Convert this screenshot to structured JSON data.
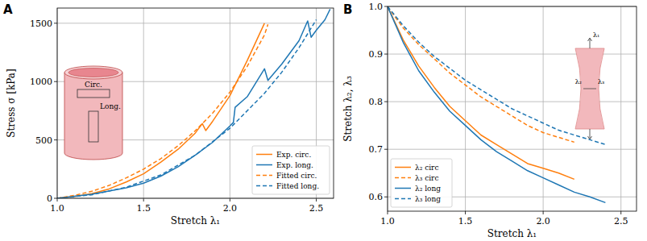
{
  "chart_data": [
    {
      "type": "line",
      "title": "A",
      "x_label": "Stretch λ₁",
      "y_label": "Stress σ [kPa]",
      "xlim": [
        1.0,
        2.6
      ],
      "ylim": [
        0,
        1630
      ],
      "xticks": [
        {
          "value": 1.0,
          "label": "1.0"
        },
        {
          "value": 1.5,
          "label": "1.5"
        },
        {
          "value": 2.0,
          "label": "2.0"
        },
        {
          "value": 2.5,
          "label": "2.5"
        }
      ],
      "yticks": [
        0,
        500,
        1000,
        1500
      ],
      "grid": true,
      "legend": "lower right",
      "annotations": [
        "Circ.",
        "Long."
      ],
      "series": [
        {
          "name": "Exp. circ.",
          "color": "#ff7f0e",
          "line_style": "solid",
          "x": [
            1.0,
            1.1,
            1.2,
            1.3,
            1.4,
            1.5,
            1.6,
            1.7,
            1.8,
            1.84,
            1.86,
            1.9,
            2.0,
            2.1,
            2.2
          ],
          "values": [
            0,
            15,
            40,
            80,
            140,
            210,
            310,
            420,
            560,
            640,
            580,
            660,
            880,
            1180,
            1500
          ]
        },
        {
          "name": "Exp. long.",
          "color": "#1f77b4",
          "line_style": "solid",
          "x": [
            1.0,
            1.2,
            1.4,
            1.5,
            1.6,
            1.7,
            1.8,
            1.9,
            2.0,
            2.02,
            2.03,
            2.1,
            2.2,
            2.22,
            2.3,
            2.4,
            2.45,
            2.47,
            2.5,
            2.55,
            2.58
          ],
          "values": [
            0,
            35,
            90,
            130,
            190,
            270,
            370,
            480,
            620,
            650,
            780,
            870,
            1110,
            1010,
            1150,
            1350,
            1520,
            1380,
            1440,
            1530,
            1620
          ]
        },
        {
          "name": "Fitted circ.",
          "color": "#ff7f0e",
          "line_style": "dashed",
          "x": [
            1.0,
            1.1,
            1.2,
            1.3,
            1.4,
            1.5,
            1.6,
            1.7,
            1.8,
            1.9,
            2.0,
            2.1,
            2.2,
            2.22
          ],
          "values": [
            0,
            25,
            60,
            110,
            175,
            250,
            340,
            450,
            580,
            730,
            910,
            1130,
            1400,
            1490
          ]
        },
        {
          "name": "Fitted long.",
          "color": "#1f77b4",
          "line_style": "dashed",
          "x": [
            1.0,
            1.2,
            1.4,
            1.6,
            1.8,
            2.0,
            2.2,
            2.3,
            2.4,
            2.5
          ],
          "values": [
            0,
            30,
            95,
            200,
            370,
            600,
            900,
            1080,
            1290,
            1530
          ]
        }
      ]
    },
    {
      "type": "line",
      "title": "B",
      "x_label": "Stretch λ₁",
      "y_label": "Stretch λ₂, λ₃",
      "xlim": [
        1.0,
        2.6
      ],
      "ylim": [
        0.57,
        1.0
      ],
      "xticks": [
        {
          "value": 1.0,
          "label": "1.0"
        },
        {
          "value": 1.5,
          "label": "1.5"
        },
        {
          "value": 2.0,
          "label": "2.0"
        },
        {
          "value": 2.5,
          "label": "2.5"
        }
      ],
      "yticks": [
        0.6,
        0.7,
        0.8,
        0.9,
        {
          "value": 1.0,
          "label": "1.0"
        }
      ],
      "grid": true,
      "legend": "lower left",
      "annotations": [
        "λ₁",
        "λ₂",
        "λ₃"
      ],
      "series": [
        {
          "name": "λ₂ circ",
          "color": "#ff7f0e",
          "line_style": "solid",
          "x": [
            1.0,
            1.1,
            1.2,
            1.3,
            1.4,
            1.5,
            1.6,
            1.7,
            1.8,
            1.9,
            2.0,
            2.1,
            2.2
          ],
          "values": [
            1.0,
            0.93,
            0.875,
            0.83,
            0.79,
            0.76,
            0.73,
            0.71,
            0.69,
            0.67,
            0.66,
            0.65,
            0.637
          ]
        },
        {
          "name": "λ₃ circ",
          "color": "#ff7f0e",
          "line_style": "dashed",
          "x": [
            1.0,
            1.1,
            1.2,
            1.3,
            1.4,
            1.5,
            1.6,
            1.7,
            1.8,
            1.9,
            2.0,
            2.1,
            2.2
          ],
          "values": [
            1.0,
            0.955,
            0.92,
            0.89,
            0.86,
            0.835,
            0.81,
            0.79,
            0.77,
            0.75,
            0.735,
            0.725,
            0.715
          ]
        },
        {
          "name": "λ₂ long",
          "color": "#1f77b4",
          "line_style": "solid",
          "x": [
            1.0,
            1.1,
            1.2,
            1.3,
            1.4,
            1.5,
            1.6,
            1.7,
            1.8,
            1.9,
            2.0,
            2.1,
            2.2,
            2.3,
            2.4
          ],
          "values": [
            1.0,
            0.925,
            0.865,
            0.82,
            0.78,
            0.75,
            0.72,
            0.695,
            0.675,
            0.655,
            0.64,
            0.625,
            0.61,
            0.6,
            0.588
          ]
        },
        {
          "name": "λ₃ long",
          "color": "#1f77b4",
          "line_style": "dashed",
          "x": [
            1.0,
            1.1,
            1.2,
            1.3,
            1.4,
            1.5,
            1.6,
            1.7,
            1.8,
            1.9,
            2.0,
            2.1,
            2.2,
            2.3,
            2.4
          ],
          "values": [
            1.0,
            0.96,
            0.925,
            0.895,
            0.87,
            0.845,
            0.825,
            0.805,
            0.785,
            0.77,
            0.755,
            0.74,
            0.73,
            0.72,
            0.71
          ]
        }
      ]
    }
  ]
}
